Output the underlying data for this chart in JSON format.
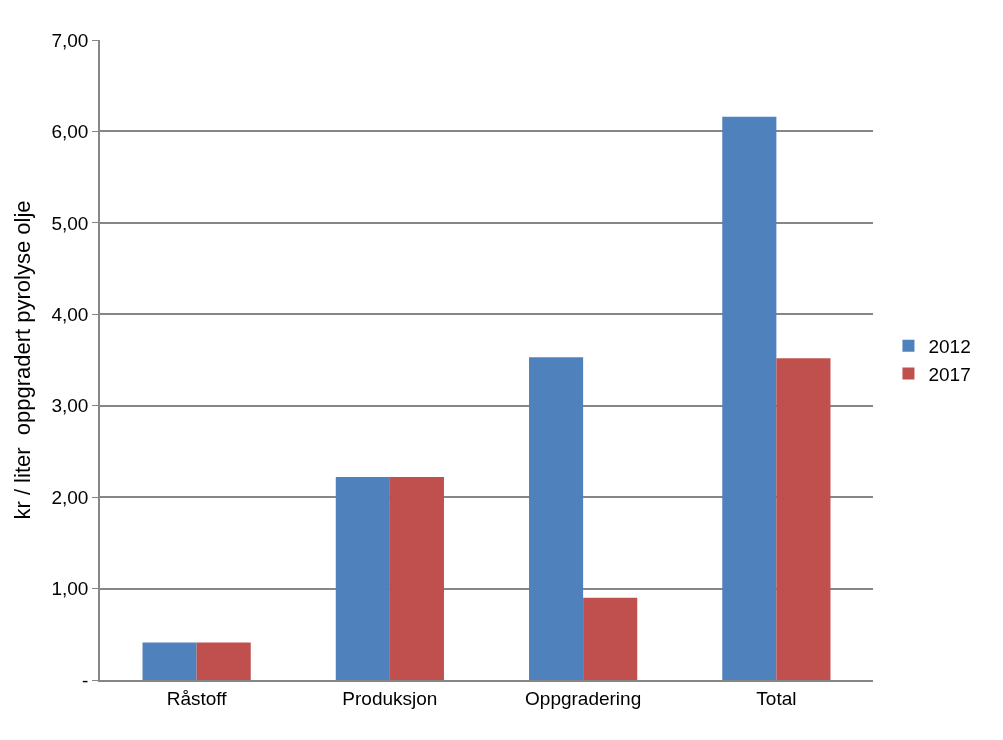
{
  "chart_data": {
    "type": "bar",
    "ylabel": "kr / liter  oppgradert pyrolyse olje",
    "categories": [
      "Råstoff",
      "Produksjon",
      "Oppgradering",
      "Total"
    ],
    "series": [
      {
        "name": "2012",
        "color": "#4f81bd",
        "values": [
          0.41,
          2.22,
          3.53,
          6.16
        ]
      },
      {
        "name": "2017",
        "color": "#c0504d",
        "values": [
          0.41,
          2.22,
          0.9,
          3.52
        ]
      }
    ],
    "ylim": [
      0,
      7
    ],
    "yticks": [
      {
        "value": 0,
        "label": "-"
      },
      {
        "value": 1,
        "label": "1,00"
      },
      {
        "value": 2,
        "label": "2,00"
      },
      {
        "value": 3,
        "label": "3,00"
      },
      {
        "value": 4,
        "label": "4,00"
      },
      {
        "value": 5,
        "label": "5,00"
      },
      {
        "value": 6,
        "label": "6,00"
      },
      {
        "value": 7,
        "label": "7,00"
      }
    ],
    "grid": "y",
    "legend": "right"
  }
}
